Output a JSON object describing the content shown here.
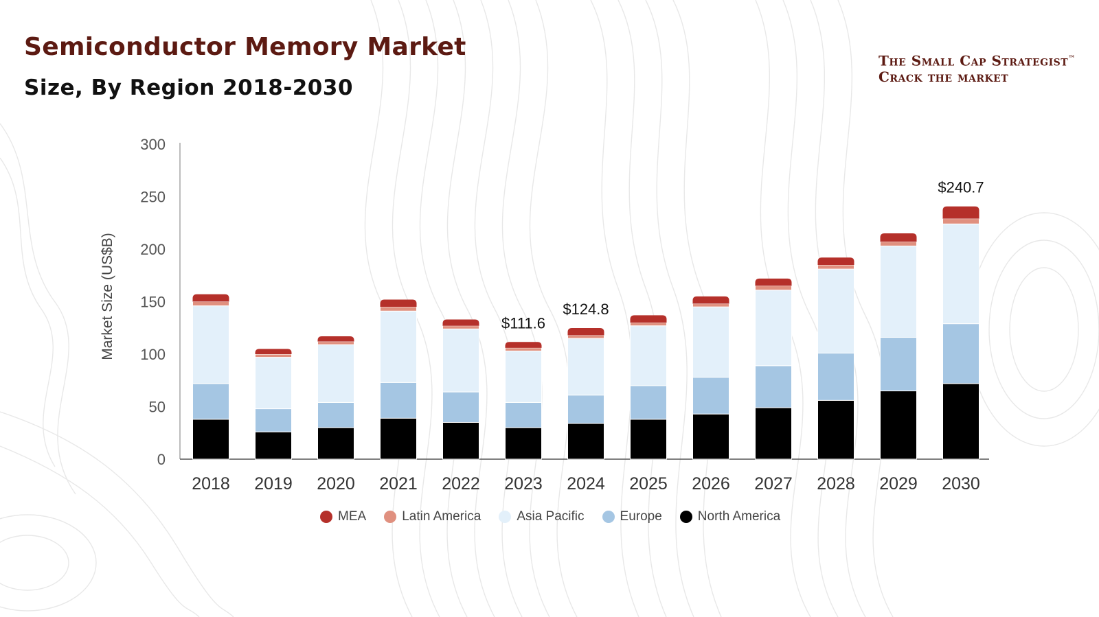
{
  "header": {
    "title": "Semiconductor Memory Market",
    "subtitle": "Size, By Region 2018-2030"
  },
  "brand": {
    "line1": "The Small Cap Strategist",
    "trademark": "™",
    "line2": "Crack the market"
  },
  "colors": {
    "title": "#5c1a12",
    "MEA": "#b5302a",
    "Latin America": "#e0907f",
    "Asia Pacific": "#e3f0fa",
    "Europe": "#a5c6e3",
    "North America": "#000000"
  },
  "chart_data": {
    "type": "bar",
    "stacked": true,
    "title": "Semiconductor Memory Market",
    "subtitle": "Size, By Region 2018-2030",
    "xlabel": "",
    "ylabel": "Market Size (US$B)",
    "ylim": [
      0,
      300
    ],
    "yticks": [
      0,
      50,
      100,
      150,
      200,
      250,
      300
    ],
    "categories": [
      "2018",
      "2019",
      "2020",
      "2021",
      "2022",
      "2023",
      "2024",
      "2025",
      "2026",
      "2027",
      "2028",
      "2029",
      "2030"
    ],
    "series": [
      {
        "name": "North America",
        "values": [
          38,
          26,
          30,
          39,
          35,
          30,
          34,
          38,
          43,
          49,
          56,
          65,
          72
        ]
      },
      {
        "name": "Europe",
        "values": [
          34,
          22,
          24,
          34,
          29,
          24,
          27,
          32,
          35,
          40,
          45,
          51,
          57
        ]
      },
      {
        "name": "Asia Pacific",
        "values": [
          74,
          49,
          55,
          68,
          60,
          49,
          54,
          57,
          67,
          72,
          80,
          87,
          95
        ]
      },
      {
        "name": "Latin America",
        "values": [
          4,
          3,
          3,
          4,
          3,
          3,
          3,
          3,
          3,
          4,
          4,
          4,
          5
        ]
      },
      {
        "name": "MEA",
        "values": [
          7,
          5,
          5,
          7,
          6,
          5.6,
          6.8,
          7,
          7,
          7,
          7,
          8,
          11.7
        ]
      }
    ],
    "legend_order": [
      "MEA",
      "Latin America",
      "Asia Pacific",
      "Europe",
      "North America"
    ],
    "legend_position": "bottom",
    "annotations": [
      {
        "category": "2023",
        "text": "$111.6"
      },
      {
        "category": "2024",
        "text": "$124.8"
      },
      {
        "category": "2030",
        "text": "$240.7"
      }
    ]
  }
}
